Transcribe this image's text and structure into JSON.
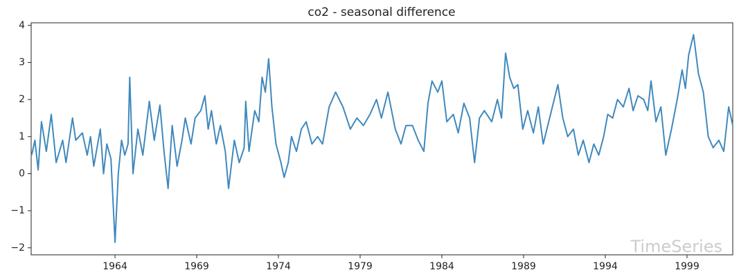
{
  "chart_data": {
    "type": "line",
    "title": "co2 - seasonal difference",
    "watermark": "TimeSeries",
    "color": "#3f88bd",
    "xlim": [
      1958.87,
      2001.8
    ],
    "ylim": [
      -2.19,
      4.07
    ],
    "xticks": [
      1964,
      1969,
      1974,
      1979,
      1984,
      1989,
      1994,
      1999
    ],
    "yticks": [
      {
        "value": -2,
        "label": "−2"
      },
      {
        "value": -1,
        "label": "−1"
      },
      0,
      1,
      2,
      3,
      4
    ],
    "x": [
      1958.9,
      1959.1,
      1959.3,
      1959.5,
      1959.8,
      1960.1,
      1960.4,
      1960.8,
      1961.0,
      1961.4,
      1961.6,
      1962.0,
      1962.3,
      1962.5,
      1962.7,
      1962.9,
      1963.1,
      1963.3,
      1963.5,
      1963.75,
      1964.0,
      1964.2,
      1964.4,
      1964.6,
      1964.8,
      1964.9,
      1965.1,
      1965.4,
      1965.7,
      1966.1,
      1966.4,
      1966.75,
      1967.0,
      1967.25,
      1967.5,
      1967.8,
      1968.1,
      1968.3,
      1968.65,
      1968.9,
      1969.25,
      1969.5,
      1969.7,
      1969.9,
      1970.2,
      1970.45,
      1970.75,
      1970.95,
      1971.3,
      1971.6,
      1971.9,
      1972.0,
      1972.2,
      1972.55,
      1972.8,
      1973.0,
      1973.2,
      1973.4,
      1973.6,
      1973.85,
      1974.15,
      1974.35,
      1974.6,
      1974.8,
      1975.1,
      1975.4,
      1975.7,
      1976.05,
      1976.4,
      1976.7,
      1977.1,
      1977.5,
      1977.95,
      1978.4,
      1978.8,
      1979.2,
      1979.6,
      1980.0,
      1980.3,
      1980.7,
      1981.15,
      1981.5,
      1981.8,
      1982.2,
      1982.55,
      1982.9,
      1983.15,
      1983.4,
      1983.75,
      1984.0,
      1984.3,
      1984.7,
      1985.0,
      1985.35,
      1985.7,
      1986.0,
      1986.3,
      1986.6,
      1987.05,
      1987.4,
      1987.65,
      1987.9,
      1988.15,
      1988.4,
      1988.65,
      1988.95,
      1989.25,
      1989.6,
      1989.9,
      1990.2,
      1990.65,
      1991.1,
      1991.4,
      1991.7,
      1992.05,
      1992.35,
      1992.65,
      1993.0,
      1993.3,
      1993.6,
      1993.9,
      1994.15,
      1994.45,
      1994.75,
      1995.1,
      1995.45,
      1995.7,
      1996.0,
      1996.35,
      1996.6,
      1996.8,
      1997.1,
      1997.4,
      1997.7,
      1998.05,
      1998.4,
      1998.7,
      1998.9,
      1999.1,
      1999.4,
      1999.7,
      2000.0,
      2000.3,
      2000.6,
      2000.95,
      2001.25,
      2001.55,
      2001.8
    ],
    "values": [
      0.5,
      0.9,
      0.1,
      1.4,
      0.6,
      1.6,
      0.3,
      0.9,
      0.3,
      1.5,
      0.9,
      1.1,
      0.5,
      1.0,
      0.2,
      0.7,
      1.2,
      0.0,
      0.8,
      0.4,
      -1.85,
      0.0,
      0.9,
      0.5,
      0.8,
      2.6,
      0.0,
      1.2,
      0.5,
      1.95,
      0.9,
      1.85,
      0.6,
      -0.4,
      1.3,
      0.2,
      0.9,
      1.5,
      0.8,
      1.5,
      1.7,
      2.1,
      1.2,
      1.7,
      0.8,
      1.3,
      0.6,
      -0.4,
      0.9,
      0.3,
      0.7,
      1.95,
      0.6,
      1.7,
      1.4,
      2.6,
      2.2,
      3.1,
      1.8,
      0.8,
      0.3,
      -0.1,
      0.3,
      1.0,
      0.6,
      1.2,
      1.4,
      0.8,
      1.0,
      0.8,
      1.8,
      2.2,
      1.8,
      1.2,
      1.5,
      1.3,
      1.6,
      2.0,
      1.5,
      2.2,
      1.2,
      0.8,
      1.3,
      1.3,
      0.9,
      0.6,
      1.9,
      2.5,
      2.2,
      2.5,
      1.4,
      1.6,
      1.1,
      1.9,
      1.5,
      0.3,
      1.5,
      1.7,
      1.4,
      2.0,
      1.5,
      3.25,
      2.6,
      2.3,
      2.4,
      1.2,
      1.7,
      1.1,
      1.8,
      0.8,
      1.6,
      2.4,
      1.5,
      1.0,
      1.2,
      0.5,
      0.9,
      0.3,
      0.8,
      0.5,
      1.0,
      1.6,
      1.5,
      2.0,
      1.8,
      2.3,
      1.7,
      2.1,
      2.0,
      1.7,
      2.5,
      1.4,
      1.8,
      0.5,
      1.2,
      2.0,
      2.8,
      2.3,
      3.2,
      3.75,
      2.7,
      2.2,
      1.0,
      0.7,
      0.9,
      0.6,
      1.8,
      1.3
    ]
  }
}
